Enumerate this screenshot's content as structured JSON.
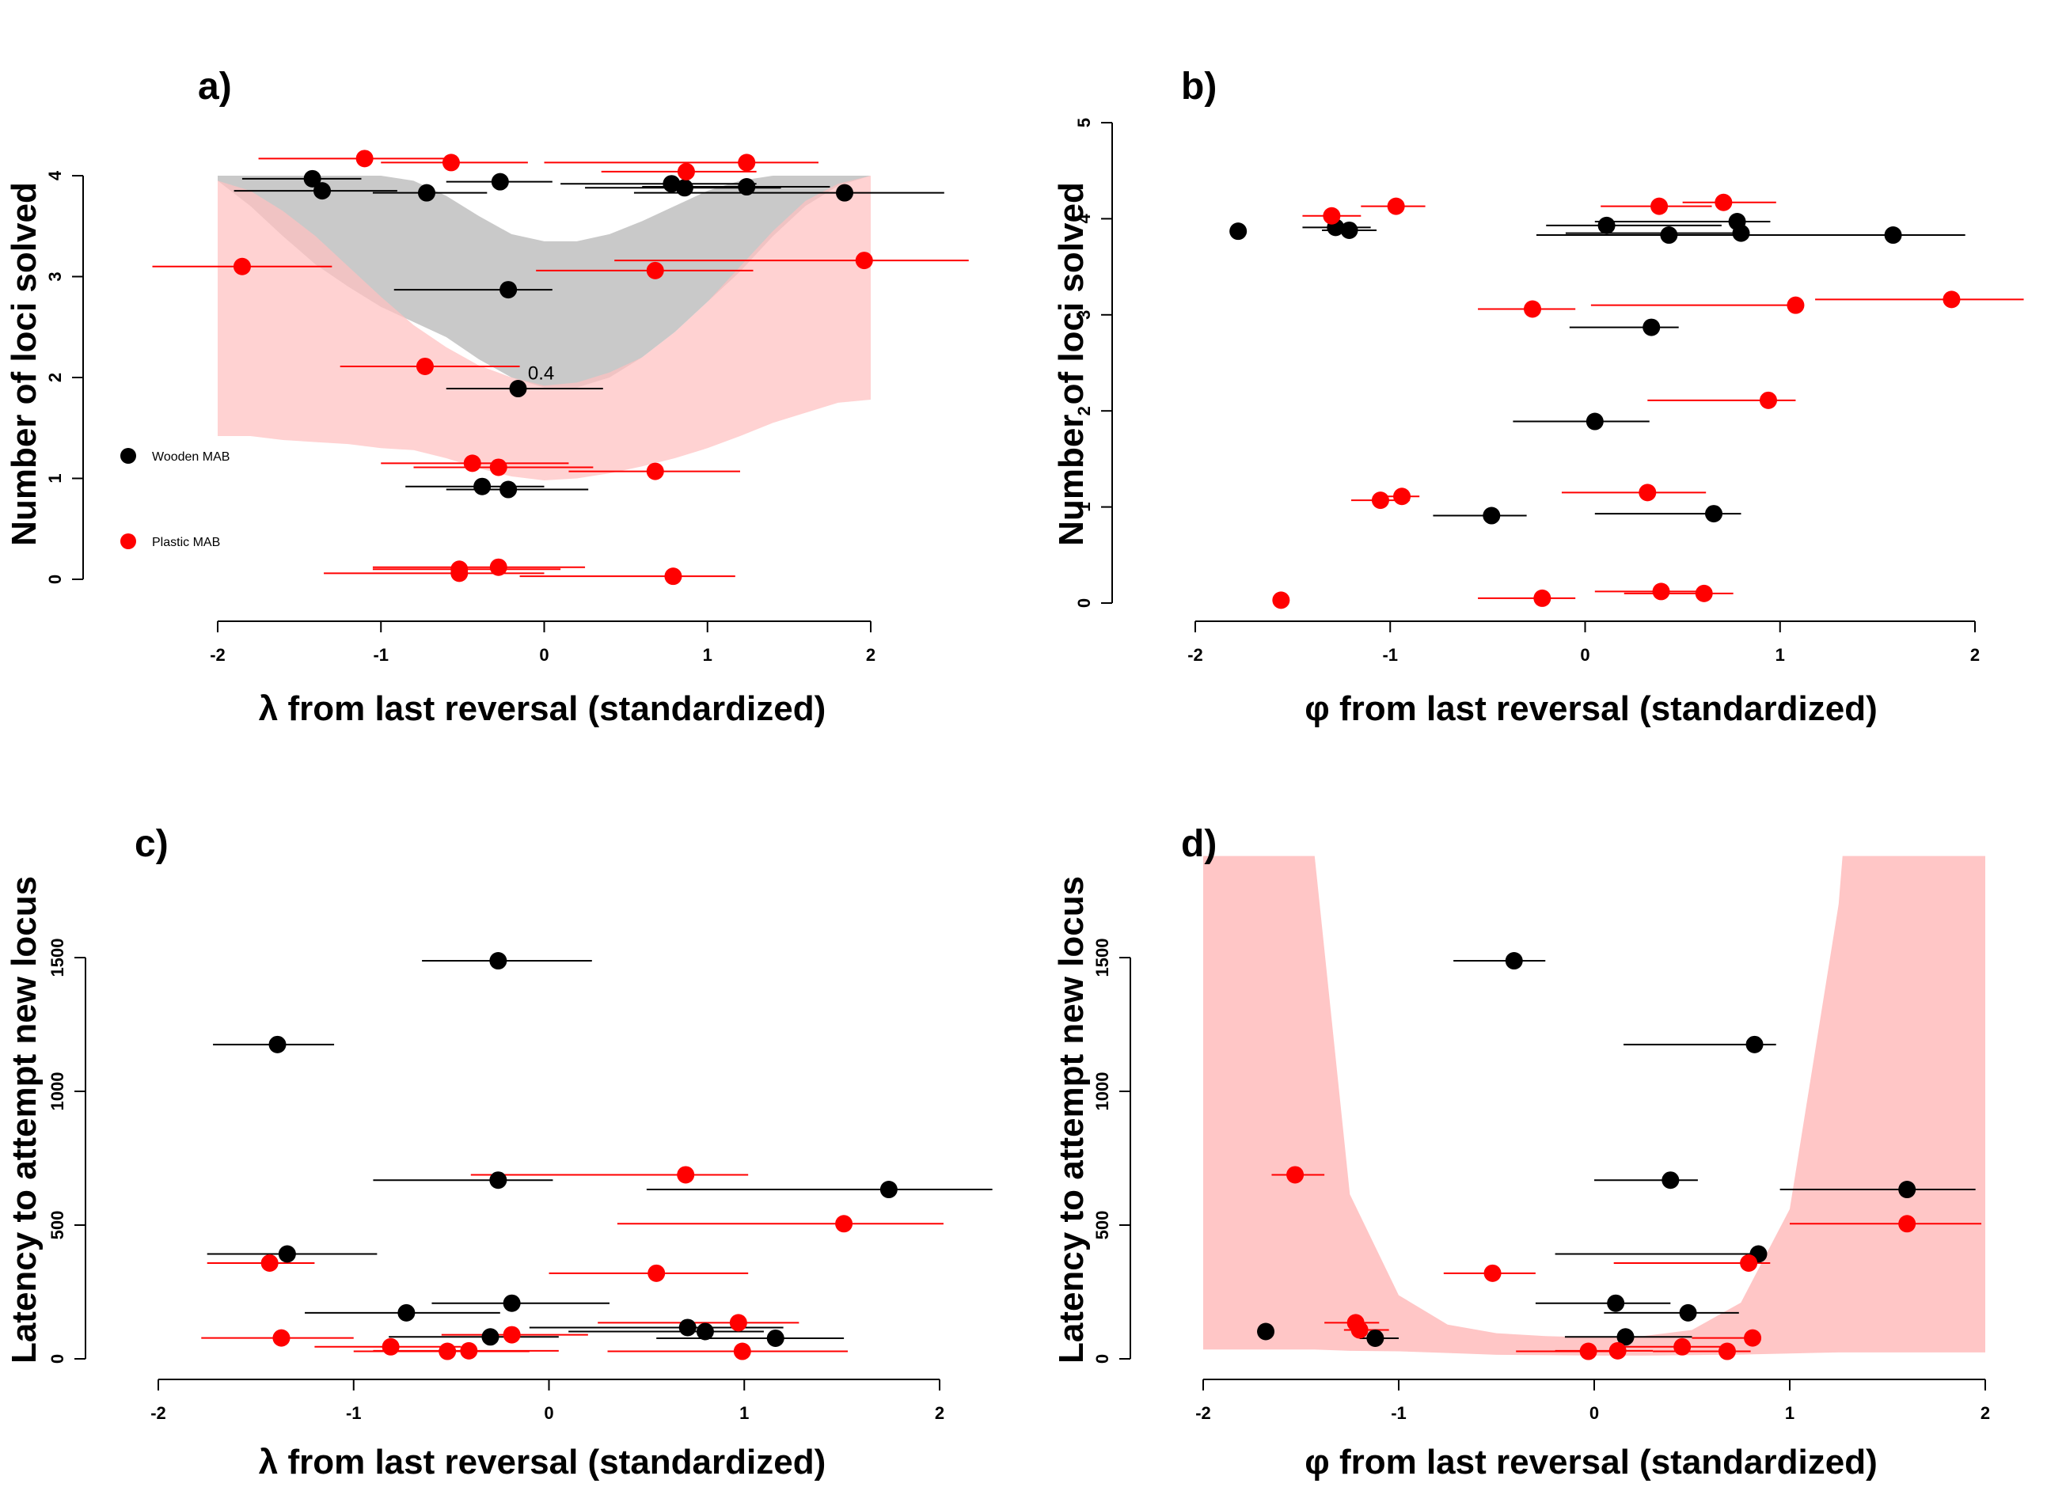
{
  "colors": {
    "wooden": "#000000",
    "plastic": "#ff0000",
    "band_gray": "#b4b4b4",
    "band_pink": "#ffc0c0"
  },
  "chart_data": [
    {
      "id": "a",
      "label": "a)",
      "type": "scatter",
      "xlabel": "λ from last reversal (standardized)",
      "ylabel": "Number of loci solved",
      "xlim": [
        -2,
        2
      ],
      "ylim": [
        0,
        4
      ],
      "xticks": [
        "-2",
        "-1",
        "0",
        "1",
        "2"
      ],
      "yticks": [
        "0",
        "1",
        "2",
        "3",
        "4"
      ],
      "legend": [
        {
          "name": "Wooden MAB",
          "color": "#000000"
        },
        {
          "name": "Plastic MAB",
          "color": "#ff0000"
        }
      ],
      "annotation": {
        "text": "0.4",
        "x": -0.1,
        "y": 1.98
      },
      "bands": [
        {
          "name": "wooden prediction",
          "color": "#b4b4b4",
          "opacity": 0.72,
          "x": [
            -2,
            -1.8,
            -1.6,
            -1.4,
            -1.2,
            -1,
            -0.8,
            -0.6,
            -0.4,
            -0.2,
            0,
            0.2,
            0.4,
            0.6,
            0.8,
            1,
            1.2,
            1.4,
            1.6,
            1.8,
            2
          ],
          "upper": [
            4,
            4,
            4,
            4,
            4,
            4,
            3.95,
            3.8,
            3.6,
            3.42,
            3.35,
            3.35,
            3.42,
            3.55,
            3.7,
            3.85,
            3.95,
            4,
            4,
            4,
            4
          ],
          "lower": [
            3.95,
            3.7,
            3.4,
            3.12,
            2.9,
            2.7,
            2.55,
            2.4,
            2.18,
            2,
            1.9,
            1.9,
            2.0,
            2.2,
            2.45,
            2.75,
            3.05,
            3.4,
            3.7,
            3.9,
            4
          ]
        },
        {
          "name": "plastic prediction",
          "color": "#ffc0c0",
          "opacity": 0.72,
          "x": [
            -2,
            -1.8,
            -1.6,
            -1.4,
            -1.2,
            -1,
            -0.8,
            -0.6,
            -0.4,
            -0.2,
            0,
            0.2,
            0.4,
            0.6,
            0.8,
            1,
            1.2,
            1.4,
            1.6,
            1.8,
            2
          ],
          "upper": [
            3.95,
            3.85,
            3.65,
            3.4,
            3.1,
            2.8,
            2.52,
            2.3,
            2.12,
            2.0,
            1.92,
            1.95,
            2.05,
            2.2,
            2.45,
            2.75,
            3.1,
            3.45,
            3.75,
            3.92,
            4
          ],
          "lower": [
            1.42,
            1.42,
            1.38,
            1.36,
            1.34,
            1.3,
            1.28,
            1.2,
            1.1,
            1.02,
            0.98,
            1.0,
            1.05,
            1.12,
            1.2,
            1.3,
            1.42,
            1.55,
            1.65,
            1.75,
            1.78
          ]
        }
      ],
      "series": [
        {
          "name": "Wooden MAB",
          "color": "#000000",
          "points": [
            {
              "x": -1.42,
              "xmin": -1.85,
              "xmax": -1.12,
              "y": 3.97
            },
            {
              "x": -1.36,
              "xmin": -1.9,
              "xmax": -0.9,
              "y": 3.85
            },
            {
              "x": -0.72,
              "xmin": -1.05,
              "xmax": -0.35,
              "y": 3.83
            },
            {
              "x": -0.27,
              "xmin": -0.6,
              "xmax": 0.05,
              "y": 3.94
            },
            {
              "x": 0.78,
              "xmin": 0.1,
              "xmax": 1.3,
              "y": 3.92
            },
            {
              "x": 0.86,
              "xmin": 0.25,
              "xmax": 1.45,
              "y": 3.88
            },
            {
              "x": 1.24,
              "xmin": 0.6,
              "xmax": 1.75,
              "y": 3.89
            },
            {
              "x": 1.84,
              "xmin": 0.55,
              "xmax": 2.45,
              "y": 3.83
            },
            {
              "x": -0.22,
              "xmin": -0.92,
              "xmax": 0.05,
              "y": 2.87
            },
            {
              "x": -0.16,
              "xmin": -0.6,
              "xmax": 0.36,
              "y": 1.89
            },
            {
              "x": -0.38,
              "xmin": -0.85,
              "xmax": 0.0,
              "y": 0.92
            },
            {
              "x": -0.22,
              "xmin": -0.6,
              "xmax": 0.27,
              "y": 0.89
            }
          ]
        },
        {
          "name": "Plastic MAB",
          "color": "#ff0000",
          "points": [
            {
              "x": -1.1,
              "xmin": -1.75,
              "xmax": -0.6,
              "y": 4.17
            },
            {
              "x": -0.57,
              "xmin": -1.0,
              "xmax": -0.1,
              "y": 4.13
            },
            {
              "x": 0.87,
              "xmin": 0.35,
              "xmax": 1.3,
              "y": 4.04
            },
            {
              "x": 1.24,
              "xmin": 0.0,
              "xmax": 1.68,
              "y": 4.13
            },
            {
              "x": -1.85,
              "xmin": -2.4,
              "xmax": -1.3,
              "y": 3.1
            },
            {
              "x": 0.68,
              "xmin": -0.05,
              "xmax": 1.28,
              "y": 3.06
            },
            {
              "x": 1.96,
              "xmin": 0.43,
              "xmax": 2.6,
              "y": 3.16
            },
            {
              "x": -0.73,
              "xmin": -1.25,
              "xmax": -0.15,
              "y": 2.11
            },
            {
              "x": -0.44,
              "xmin": -1.0,
              "xmax": 0.15,
              "y": 1.15
            },
            {
              "x": -0.28,
              "xmin": -0.8,
              "xmax": 0.3,
              "y": 1.11
            },
            {
              "x": 0.68,
              "xmin": 0.15,
              "xmax": 1.2,
              "y": 1.07
            },
            {
              "x": -0.52,
              "xmin": -1.35,
              "xmax": 0.0,
              "y": 0.06
            },
            {
              "x": -0.52,
              "xmin": -1.05,
              "xmax": 0.1,
              "y": 0.1
            },
            {
              "x": -0.28,
              "xmin": -1.05,
              "xmax": 0.25,
              "y": 0.12
            },
            {
              "x": 0.79,
              "xmin": -0.15,
              "xmax": 1.17,
              "y": 0.03
            }
          ]
        }
      ]
    },
    {
      "id": "b",
      "label": "b)",
      "type": "scatter",
      "xlabel": "φ from last reversal (standardized)",
      "ylabel": "Number of loci solved",
      "xlim": [
        -2,
        2
      ],
      "ylim": [
        0,
        5
      ],
      "xticks": [
        "-2",
        "-1",
        "0",
        "1",
        "2"
      ],
      "yticks": [
        "0",
        "1",
        "2",
        "3",
        "4",
        "5"
      ],
      "series": [
        {
          "name": "Wooden MAB",
          "color": "#000000",
          "points": [
            {
              "x": -1.78,
              "xmin": -1.78,
              "xmax": -1.78,
              "y": 3.87
            },
            {
              "x": -1.28,
              "xmin": -1.45,
              "xmax": -1.1,
              "y": 3.91
            },
            {
              "x": -1.21,
              "xmin": -1.35,
              "xmax": -1.07,
              "y": 3.88
            },
            {
              "x": 0.11,
              "xmin": -0.2,
              "xmax": 0.7,
              "y": 3.93
            },
            {
              "x": 0.43,
              "xmin": -0.25,
              "xmax": 1.1,
              "y": 3.83
            },
            {
              "x": 0.78,
              "xmin": 0.05,
              "xmax": 0.95,
              "y": 3.97
            },
            {
              "x": 0.8,
              "xmin": -0.1,
              "xmax": 0.8,
              "y": 3.85
            },
            {
              "x": 1.58,
              "xmin": 0.9,
              "xmax": 1.95,
              "y": 3.83
            },
            {
              "x": 0.34,
              "xmin": -0.08,
              "xmax": 0.48,
              "y": 2.87
            },
            {
              "x": 0.05,
              "xmin": -0.37,
              "xmax": 0.33,
              "y": 1.89
            },
            {
              "x": -0.48,
              "xmin": -0.78,
              "xmax": -0.3,
              "y": 0.91
            },
            {
              "x": 0.66,
              "xmin": 0.05,
              "xmax": 0.8,
              "y": 0.93
            }
          ]
        },
        {
          "name": "Plastic MAB",
          "color": "#ff0000",
          "points": [
            {
              "x": -1.3,
              "xmin": -1.45,
              "xmax": -1.15,
              "y": 4.03
            },
            {
              "x": -0.97,
              "xmin": -1.15,
              "xmax": -0.82,
              "y": 4.13
            },
            {
              "x": 0.38,
              "xmin": 0.08,
              "xmax": 0.65,
              "y": 4.13
            },
            {
              "x": 0.71,
              "xmin": 0.5,
              "xmax": 0.98,
              "y": 4.17
            },
            {
              "x": -0.27,
              "xmin": -0.55,
              "xmax": -0.05,
              "y": 3.06
            },
            {
              "x": 1.08,
              "xmin": 0.03,
              "xmax": 1.1,
              "y": 3.1
            },
            {
              "x": 1.88,
              "xmin": 1.18,
              "xmax": 2.25,
              "y": 3.16
            },
            {
              "x": 0.94,
              "xmin": 0.32,
              "xmax": 1.08,
              "y": 2.11
            },
            {
              "x": -1.05,
              "xmin": -1.2,
              "xmax": -0.9,
              "y": 1.07
            },
            {
              "x": -0.94,
              "xmin": -1.05,
              "xmax": -0.85,
              "y": 1.11
            },
            {
              "x": 0.32,
              "xmin": -0.12,
              "xmax": 0.62,
              "y": 1.15
            },
            {
              "x": -1.56,
              "xmin": -1.6,
              "xmax": -1.52,
              "y": 0.03
            },
            {
              "x": -0.22,
              "xmin": -0.55,
              "xmax": -0.05,
              "y": 0.05
            },
            {
              "x": 0.39,
              "xmin": 0.05,
              "xmax": 0.6,
              "y": 0.12
            },
            {
              "x": 0.61,
              "xmin": 0.2,
              "xmax": 0.76,
              "y": 0.1
            }
          ]
        }
      ]
    },
    {
      "id": "c",
      "label": "c)",
      "type": "scatter",
      "xlabel": "λ from last reversal (standardized)",
      "ylabel": "Latency to attempt new locus",
      "xlim": [
        -2,
        2
      ],
      "ylim": [
        0,
        1500
      ],
      "xticks": [
        "-2",
        "-1",
        "0",
        "1",
        "2"
      ],
      "yticks": [
        "0",
        "500",
        "1000",
        "1500"
      ],
      "series": [
        {
          "name": "Wooden MAB",
          "color": "#000000",
          "points": [
            {
              "x": -0.26,
              "xmin": -0.65,
              "xmax": 0.22,
              "y": 1488
            },
            {
              "x": -1.39,
              "xmin": -1.72,
              "xmax": -1.1,
              "y": 1175
            },
            {
              "x": -0.26,
              "xmin": -0.9,
              "xmax": 0.02,
              "y": 668
            },
            {
              "x": 1.74,
              "xmin": 0.5,
              "xmax": 2.27,
              "y": 633
            },
            {
              "x": -1.34,
              "xmin": -1.75,
              "xmax": -0.88,
              "y": 392
            },
            {
              "x": -0.19,
              "xmin": -0.6,
              "xmax": 0.31,
              "y": 208
            },
            {
              "x": -0.73,
              "xmin": -1.25,
              "xmax": -0.25,
              "y": 172
            },
            {
              "x": 0.71,
              "xmin": -0.1,
              "xmax": 1.2,
              "y": 117
            },
            {
              "x": 0.8,
              "xmin": 0.1,
              "xmax": 1.1,
              "y": 102
            },
            {
              "x": -0.3,
              "xmin": -0.82,
              "xmax": 0.05,
              "y": 82
            },
            {
              "x": 1.16,
              "xmin": 0.55,
              "xmax": 1.51,
              "y": 77
            }
          ]
        },
        {
          "name": "Plastic MAB",
          "color": "#ff0000",
          "points": [
            {
              "x": 0.7,
              "xmin": -0.4,
              "xmax": 1.02,
              "y": 688
            },
            {
              "x": 1.51,
              "xmin": 0.35,
              "xmax": 2.02,
              "y": 505
            },
            {
              "x": -1.43,
              "xmin": -1.75,
              "xmax": -1.2,
              "y": 358
            },
            {
              "x": 0.55,
              "xmin": 0.0,
              "xmax": 1.02,
              "y": 320
            },
            {
              "x": 0.97,
              "xmin": 0.25,
              "xmax": 1.28,
              "y": 135
            },
            {
              "x": -0.19,
              "xmin": -0.55,
              "xmax": 0.2,
              "y": 90
            },
            {
              "x": -1.37,
              "xmin": -1.78,
              "xmax": -1.0,
              "y": 78
            },
            {
              "x": -0.81,
              "xmin": -1.2,
              "xmax": -0.45,
              "y": 45
            },
            {
              "x": -0.41,
              "xmin": -0.9,
              "xmax": 0.05,
              "y": 30
            },
            {
              "x": -0.52,
              "xmin": -1.0,
              "xmax": -0.1,
              "y": 28
            },
            {
              "x": 0.99,
              "xmin": 0.3,
              "xmax": 1.53,
              "y": 28
            }
          ]
        }
      ]
    },
    {
      "id": "d",
      "label": "d)",
      "type": "scatter",
      "xlabel": "φ from last reversal (standardized)",
      "ylabel": "Latency to attempt new locus",
      "xlim": [
        -2,
        2
      ],
      "ylim": [
        0,
        1500
      ],
      "xticks": [
        "-2",
        "-1",
        "0",
        "1",
        "2"
      ],
      "yticks": [
        "0",
        "500",
        "1000",
        "1500"
      ],
      "bands": [
        {
          "name": "plastic prediction",
          "color": "#ffc0c0",
          "opacity": 0.9,
          "x": [
            -2,
            -1.43,
            -1.25,
            -1.0,
            -0.75,
            -0.5,
            -0.25,
            0,
            0.25,
            0.5,
            0.75,
            1.0,
            1.25,
            1.27,
            2
          ],
          "upper": [
            1880,
            1880,
            615,
            238,
            128,
            96,
            85,
            80,
            85,
            108,
            210,
            560,
            1700,
            1880,
            1880
          ],
          "lower": [
            35,
            35,
            30,
            28,
            22,
            15,
            14,
            12,
            12,
            14,
            16,
            20,
            24,
            24,
            24
          ]
        }
      ],
      "series": [
        {
          "name": "Wooden MAB",
          "color": "#000000",
          "points": [
            {
              "x": -0.41,
              "xmin": -0.72,
              "xmax": -0.25,
              "y": 1488
            },
            {
              "x": 0.82,
              "xmin": 0.15,
              "xmax": 0.93,
              "y": 1175
            },
            {
              "x": 0.39,
              "xmin": 0.0,
              "xmax": 0.53,
              "y": 668
            },
            {
              "x": 1.6,
              "xmin": 0.95,
              "xmax": 1.95,
              "y": 633
            },
            {
              "x": 0.84,
              "xmin": -0.2,
              "xmax": 0.84,
              "y": 392
            },
            {
              "x": 0.11,
              "xmin": -0.3,
              "xmax": 0.39,
              "y": 208
            },
            {
              "x": 0.48,
              "xmin": 0.05,
              "xmax": 0.74,
              "y": 172
            },
            {
              "x": 0.16,
              "xmin": -0.15,
              "xmax": 0.5,
              "y": 82
            },
            {
              "x": -1.12,
              "xmin": -1.2,
              "xmax": -1.0,
              "y": 77
            },
            {
              "x": -1.68,
              "xmin": -1.68,
              "xmax": -1.68,
              "y": 102
            }
          ]
        },
        {
          "name": "Plastic MAB",
          "color": "#ff0000",
          "points": [
            {
              "x": -1.53,
              "xmin": -1.65,
              "xmax": -1.38,
              "y": 688
            },
            {
              "x": 1.6,
              "xmin": 1.0,
              "xmax": 1.98,
              "y": 505
            },
            {
              "x": 0.79,
              "xmin": 0.1,
              "xmax": 0.9,
              "y": 358
            },
            {
              "x": -0.52,
              "xmin": -0.77,
              "xmax": -0.3,
              "y": 320
            },
            {
              "x": -1.22,
              "xmin": -1.38,
              "xmax": -1.1,
              "y": 135
            },
            {
              "x": -1.2,
              "xmin": -1.28,
              "xmax": -1.05,
              "y": 108
            },
            {
              "x": 0.81,
              "xmin": 0.5,
              "xmax": 0.85,
              "y": 78
            },
            {
              "x": 0.45,
              "xmin": 0.1,
              "xmax": 0.65,
              "y": 45
            },
            {
              "x": 0.12,
              "xmin": -0.2,
              "xmax": 0.3,
              "y": 30
            },
            {
              "x": -0.03,
              "xmin": -0.4,
              "xmax": 0.15,
              "y": 28
            },
            {
              "x": 0.68,
              "xmin": 0.3,
              "xmax": 0.8,
              "y": 28
            }
          ]
        }
      ]
    }
  ]
}
